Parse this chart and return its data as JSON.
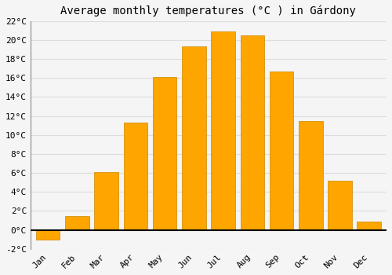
{
  "title": "Average monthly temperatures (°C ) in Gárdony",
  "months": [
    "Jan",
    "Feb",
    "Mar",
    "Apr",
    "May",
    "Jun",
    "Jul",
    "Aug",
    "Sep",
    "Oct",
    "Nov",
    "Dec"
  ],
  "values": [
    -1.0,
    1.5,
    6.1,
    11.3,
    16.1,
    19.3,
    20.9,
    20.5,
    16.7,
    11.5,
    5.2,
    0.9
  ],
  "bar_color": "#FFA500",
  "bar_edge_color": "#CC8800",
  "ylim": [
    -2,
    22
  ],
  "yticks": [
    -2,
    0,
    2,
    4,
    6,
    8,
    10,
    12,
    14,
    16,
    18,
    20,
    22
  ],
  "ytick_labels": [
    "-2°C",
    "0°C",
    "2°C",
    "4°C",
    "6°C",
    "8°C",
    "10°C",
    "12°C",
    "14°C",
    "16°C",
    "18°C",
    "20°C",
    "22°C"
  ],
  "background_color": "#f5f5f5",
  "plot_bg_color": "#f5f5f5",
  "grid_color": "#dddddd",
  "font_family": "monospace",
  "title_fontsize": 10,
  "tick_fontsize": 8,
  "bar_width": 0.82
}
